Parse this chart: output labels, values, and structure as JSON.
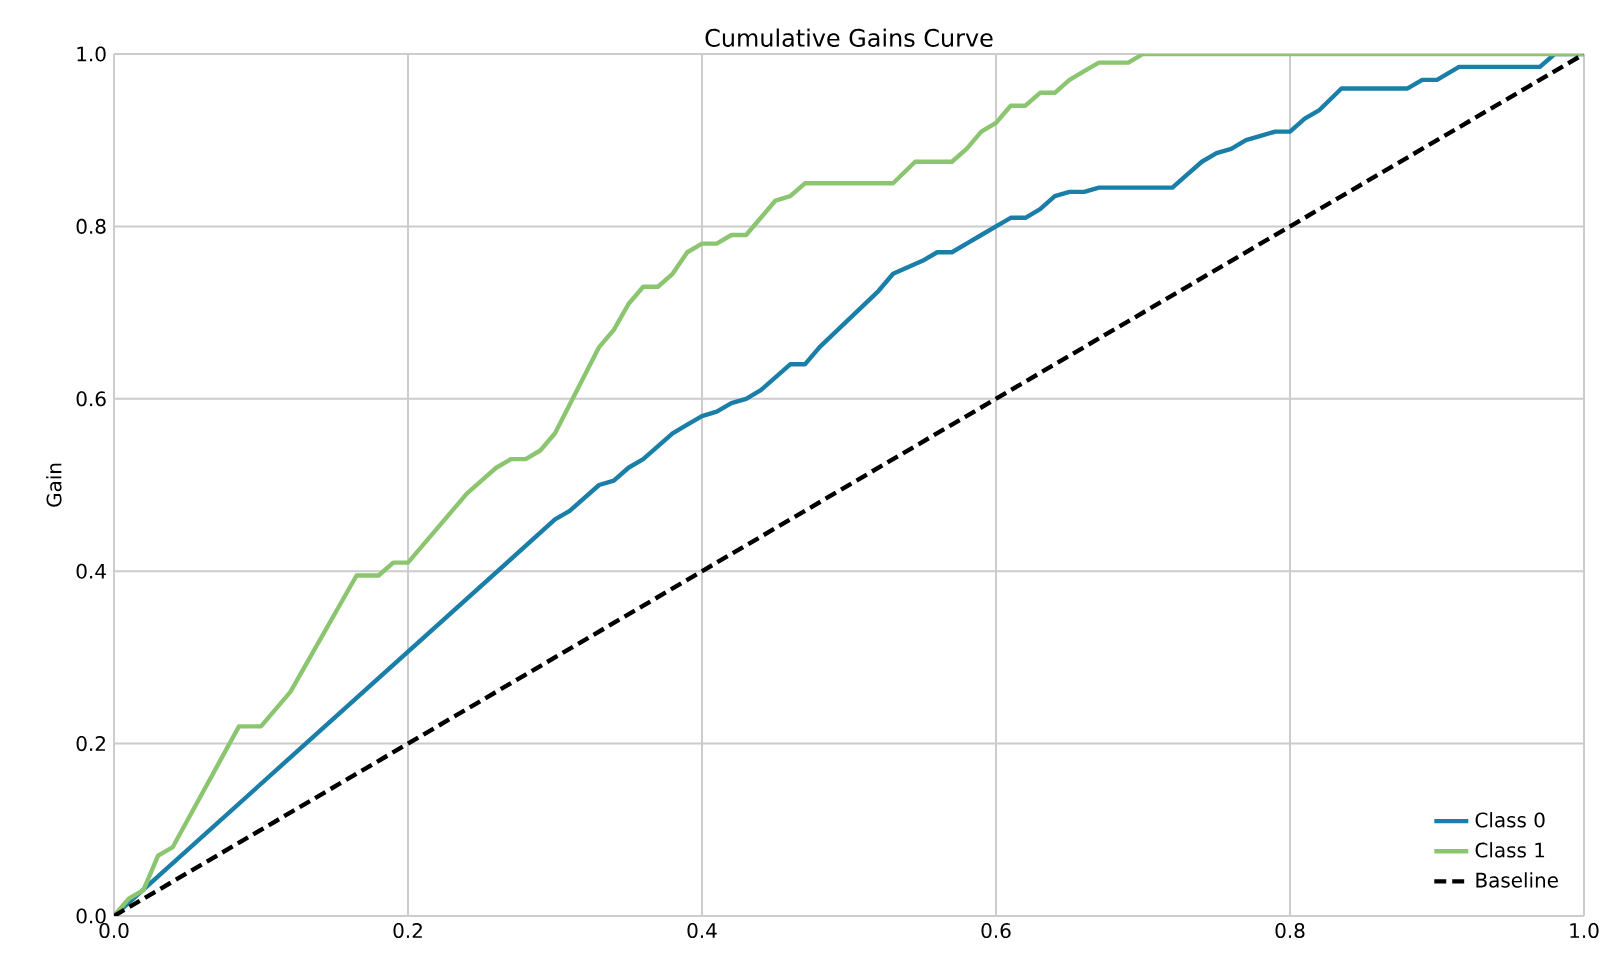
{
  "chart_data": {
    "type": "line",
    "title": "Cumulative Gains Curve",
    "ylabel": "Gain",
    "xlim": [
      0,
      1
    ],
    "ylim": [
      0,
      1
    ],
    "xticks": [
      {
        "value": 0,
        "label": "0.0"
      },
      0.2,
      0.4,
      0.6,
      0.8,
      {
        "value": 1,
        "label": "1.0"
      }
    ],
    "yticks": [
      {
        "value": 0,
        "label": "0.0"
      },
      0.2,
      0.4,
      0.6,
      0.8,
      {
        "value": 1,
        "label": "1.0"
      }
    ],
    "grid": true,
    "legend": "bottom right",
    "marker": "none",
    "series": [
      {
        "name": "Class 0",
        "color": "#1a7fa8",
        "line_style": "solid",
        "x": [
          0,
          0.3,
          0.31,
          0.33,
          0.34,
          0.35,
          0.36,
          0.37,
          0.38,
          0.39,
          0.4,
          0.41,
          0.42,
          0.43,
          0.44,
          0.46,
          0.47,
          0.48,
          0.52,
          0.53,
          0.55,
          0.56,
          0.57,
          0.58,
          0.59,
          0.6,
          0.61,
          0.62,
          0.63,
          0.64,
          0.65,
          0.66,
          0.67,
          0.72,
          0.73,
          0.74,
          0.75,
          0.76,
          0.77,
          0.78,
          0.79,
          0.8,
          0.81,
          0.82,
          0.835,
          0.88,
          0.89,
          0.9,
          0.915,
          0.97,
          0.98,
          1
        ],
        "values": [
          0,
          0.46,
          0.47,
          0.5,
          0.505,
          0.52,
          0.53,
          0.545,
          0.56,
          0.57,
          0.58,
          0.585,
          0.595,
          0.6,
          0.61,
          0.64,
          0.64,
          0.66,
          0.725,
          0.745,
          0.76,
          0.77,
          0.77,
          0.78,
          0.79,
          0.8,
          0.81,
          0.81,
          0.82,
          0.835,
          0.84,
          0.84,
          0.845,
          0.845,
          0.86,
          0.875,
          0.885,
          0.89,
          0.9,
          0.905,
          0.91,
          0.91,
          0.925,
          0.935,
          0.96,
          0.96,
          0.97,
          0.97,
          0.985,
          0.985,
          1.0,
          1
        ]
      },
      {
        "name": "Class 1",
        "color": "#8cc56f",
        "line_style": "solid",
        "x": [
          0,
          0.01,
          0.02,
          0.03,
          0.04,
          0.085,
          0.1,
          0.12,
          0.165,
          0.18,
          0.19,
          0.2,
          0.21,
          0.23,
          0.24,
          0.25,
          0.26,
          0.27,
          0.28,
          0.29,
          0.3,
          0.33,
          0.34,
          0.35,
          0.36,
          0.37,
          0.38,
          0.39,
          0.4,
          0.41,
          0.42,
          0.43,
          0.44,
          0.45,
          0.46,
          0.47,
          0.53,
          0.545,
          0.57,
          0.58,
          0.59,
          0.6,
          0.61,
          0.62,
          0.63,
          0.64,
          0.65,
          0.66,
          0.67,
          0.69,
          0.7,
          1
        ],
        "values": [
          0,
          0.02,
          0.03,
          0.07,
          0.08,
          0.22,
          0.22,
          0.26,
          0.395,
          0.395,
          0.41,
          0.41,
          0.43,
          0.47,
          0.49,
          0.505,
          0.52,
          0.53,
          0.53,
          0.54,
          0.56,
          0.66,
          0.68,
          0.71,
          0.73,
          0.73,
          0.745,
          0.77,
          0.78,
          0.78,
          0.79,
          0.79,
          0.81,
          0.83,
          0.835,
          0.85,
          0.85,
          0.875,
          0.875,
          0.89,
          0.91,
          0.92,
          0.94,
          0.94,
          0.955,
          0.955,
          0.97,
          0.98,
          0.99,
          0.99,
          1.0,
          1
        ]
      },
      {
        "name": "Baseline",
        "color": "#000000",
        "line_style": "dashed",
        "x": [
          0,
          1
        ],
        "values": [
          0,
          1
        ]
      }
    ]
  }
}
